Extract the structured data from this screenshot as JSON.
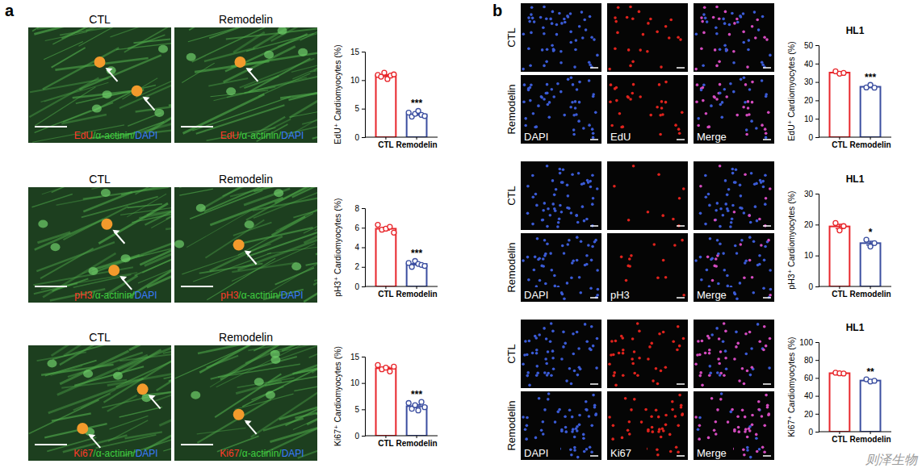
{
  "figure": {
    "panels": [
      {
        "label": "a",
        "rows": [
          {
            "conditions": [
              "CTL",
              "Remodelin"
            ],
            "stain": [
              "EdU",
              "/",
              "α-actinin",
              "/",
              "DAPI"
            ]
          },
          {
            "conditions": [
              "CTL",
              "Remodelin"
            ],
            "stain": [
              "pH3",
              "/",
              "α-actinin",
              "/",
              "DAPI"
            ]
          },
          {
            "conditions": [
              "CTL",
              "Remodelin"
            ],
            "stain": [
              "Ki67",
              "/",
              "α-actinin",
              "/",
              "DAPI"
            ]
          }
        ]
      },
      {
        "label": "b",
        "rows": [
          {
            "conditions": [
              "CTL",
              "Remodelin"
            ],
            "channels": [
              "DAPI",
              "EdU",
              "Merge"
            ]
          },
          {
            "conditions": [
              "CTL",
              "Remodelin"
            ],
            "channels": [
              "DAPI",
              "pH3",
              "Merge"
            ]
          },
          {
            "conditions": [
              "CTL",
              "Remodelin"
            ],
            "channels": [
              "DAPI",
              "Ki67",
              "Merge"
            ]
          }
        ]
      }
    ],
    "watermark": "则泽生物"
  },
  "chart_data": [
    {
      "type": "bar",
      "y_label": "EdU⁺ Cardiomyocytes (%)",
      "categories": [
        "CTL",
        "Remodelin"
      ],
      "values": [
        10.8,
        4.0
      ],
      "errors": [
        0.16,
        0.15
      ],
      "points": [
        [
          10.9,
          10.6,
          11.3,
          10.2,
          10.8,
          11.0
        ],
        [
          4.3,
          3.6,
          4.1,
          4.6,
          3.9,
          3.7
        ]
      ],
      "colors": [
        "#e8262b",
        "#3b4ea0"
      ],
      "ylim": [
        0,
        15
      ],
      "yticks": [
        0,
        5,
        10,
        15
      ],
      "annotations": [
        "***"
      ]
    },
    {
      "type": "bar",
      "y_label": "pH3⁺ Cardiomyocytes (%)",
      "categories": [
        "CTL",
        "Remodelin"
      ],
      "values": [
        5.9,
        2.3
      ],
      "errors": [
        0.14,
        0.09
      ],
      "points": [
        [
          6.3,
          5.8,
          5.9,
          6.1,
          5.5
        ],
        [
          2.4,
          2.0,
          2.6,
          2.3,
          2.2,
          2.1
        ]
      ],
      "colors": [
        "#e8262b",
        "#3b4ea0"
      ],
      "ylim": [
        0,
        8
      ],
      "yticks": [
        0,
        2,
        4,
        6,
        8
      ],
      "annotations": [
        "***"
      ]
    },
    {
      "type": "bar",
      "y_label": "Ki67⁺ Cardiomyocytes (%)",
      "categories": [
        "CTL",
        "Remodelin"
      ],
      "values": [
        12.8,
        5.6
      ],
      "errors": [
        0.2,
        0.27
      ],
      "points": [
        [
          13.4,
          12.6,
          12.9,
          12.2,
          13.1
        ],
        [
          6.2,
          5.1,
          5.8,
          4.8,
          6.4,
          5.4
        ]
      ],
      "colors": [
        "#e8262b",
        "#3b4ea0"
      ],
      "ylim": [
        0,
        15
      ],
      "yticks": [
        0,
        5,
        10,
        15
      ],
      "annotations": [
        "***"
      ]
    },
    {
      "type": "bar",
      "title": "HL1",
      "y_label": "EdU⁺ Cardiomyocytes (%)",
      "categories": [
        "CTL",
        "Remodelin"
      ],
      "values": [
        35.1,
        27.4
      ],
      "errors": [
        0.4,
        0.5
      ],
      "points": [
        [
          35.8,
          34.5,
          34.9
        ],
        [
          27.0,
          28.4,
          26.9
        ]
      ],
      "colors": [
        "#e8262b",
        "#3b4ea0"
      ],
      "ylim": [
        0,
        50
      ],
      "yticks": [
        0,
        10,
        20,
        30,
        40,
        50
      ],
      "annotations": [
        "***"
      ]
    },
    {
      "type": "bar",
      "title": "HL1",
      "y_label": "pH3⁺ Cardiomyocytes (%)",
      "categories": [
        "CTL",
        "Remodelin"
      ],
      "values": [
        19.4,
        14.0
      ],
      "errors": [
        0.7,
        0.6
      ],
      "points": [
        [
          20.5,
          18.1,
          19.5
        ],
        [
          15.1,
          12.9,
          14.0
        ]
      ],
      "colors": [
        "#e8262b",
        "#3b4ea0"
      ],
      "ylim": [
        0,
        30
      ],
      "yticks": [
        0,
        10,
        20,
        30
      ],
      "annotations": [
        "*"
      ]
    },
    {
      "type": "bar",
      "title": "HL1",
      "y_label": "Ki67⁺ Cardiomyocytes (%)",
      "categories": [
        "CTL",
        "Remodelin"
      ],
      "values": [
        65.3,
        57.1
      ],
      "errors": [
        0.3,
        0.7
      ],
      "points": [
        [
          65.8,
          65.2,
          64.9
        ],
        [
          58.5,
          56.0,
          56.8
        ]
      ],
      "colors": [
        "#e8262b",
        "#3b4ea0"
      ],
      "ylim": [
        0,
        100
      ],
      "yticks": [
        0,
        20,
        40,
        60,
        80,
        100
      ],
      "annotations": [
        "**"
      ]
    }
  ]
}
